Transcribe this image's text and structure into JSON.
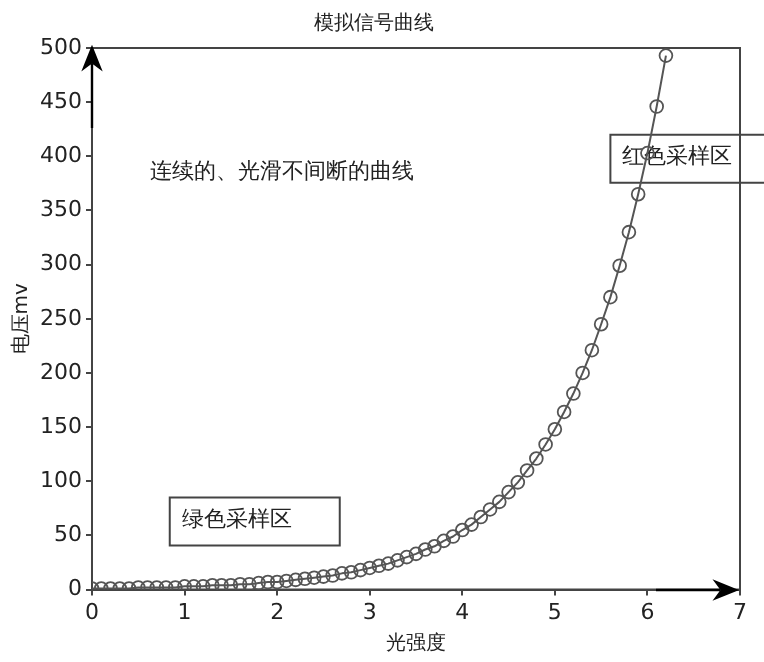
{
  "chart_data": {
    "type": "line",
    "title": "模拟信号曲线",
    "xlabel": "光强度",
    "ylabel": "电压mv",
    "annotations": [
      "连续的、光滑不间断的曲线",
      "红色采样区",
      "绿色采样区"
    ],
    "x": [
      0,
      0.1,
      0.2,
      0.3,
      0.4,
      0.5,
      0.6,
      0.7,
      0.8,
      0.9,
      1,
      1.1,
      1.2,
      1.3,
      1.4,
      1.5,
      1.6,
      1.7,
      1.8,
      1.9,
      2,
      2.1,
      2.2,
      2.3,
      2.4,
      2.5,
      2.6,
      2.7,
      2.8,
      2.9,
      3,
      3.1,
      3.2,
      3.3,
      3.4,
      3.5,
      3.6,
      3.7,
      3.8,
      3.9,
      4,
      4.1,
      4.2,
      4.3,
      4.4,
      4.5,
      4.6,
      4.7,
      4.8,
      4.9,
      5,
      5.1,
      5.2,
      5.3,
      5.4,
      5.5,
      5.6,
      5.7,
      5.8,
      5.9,
      6,
      6.1,
      6.2
    ],
    "values": [
      1,
      1,
      1,
      1,
      1,
      2,
      2,
      2,
      2,
      2,
      3,
      3,
      3,
      4,
      4,
      4,
      5,
      5,
      6,
      7,
      7,
      8,
      9,
      10,
      11,
      12,
      13,
      15,
      16,
      18,
      20,
      22,
      24,
      27,
      30,
      33,
      37,
      40,
      45,
      49,
      55,
      60,
      67,
      74,
      81,
      90,
      99,
      110,
      121,
      134,
      148,
      164,
      181,
      200,
      221,
      245,
      270,
      299,
      330,
      365,
      403,
      446,
      493
    ],
    "color": "#555555",
    "marker": "circle",
    "line_style": "solid",
    "grid": false,
    "legend": false,
    "xlim": [
      0,
      7
    ],
    "xticks": [
      0,
      1,
      2,
      3,
      4,
      5,
      6,
      7
    ],
    "ylim": [
      0,
      500
    ],
    "yticks": [
      0,
      50,
      100,
      150,
      200,
      250,
      300,
      350,
      400,
      450,
      500
    ]
  }
}
